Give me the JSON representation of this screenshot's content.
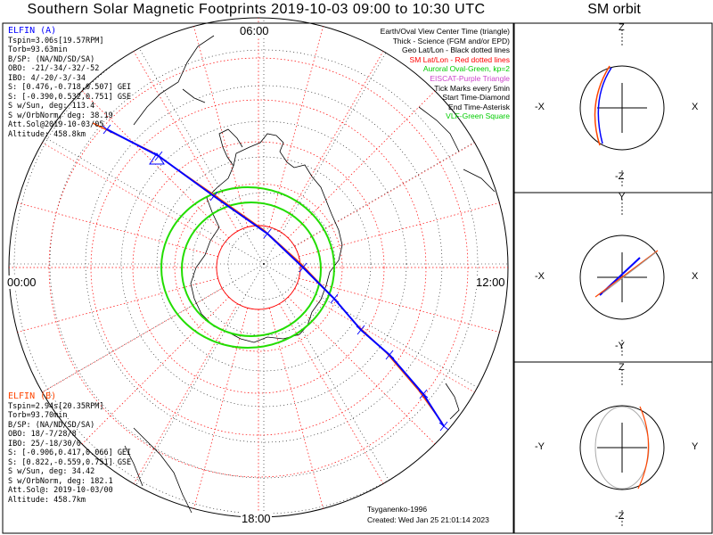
{
  "title": "Southern Solar Magnetic Footprints 2019-10-03 09:00 to 10:30 UTC",
  "orbit_title": "SM orbit",
  "hour_labels": {
    "top": "06:00",
    "left": "00:00",
    "right": "12:00",
    "bottom": "18:00"
  },
  "elfin_a": {
    "name": "ELFIN (A)",
    "color": "#0000ff",
    "lines": [
      "Tspin=3.06s[19.57RPM]",
      "Torb=93.63min",
      "B/SP: (NA/ND/SD/SA)",
      "OBO: -21/-34/-32/-52",
      "IBO: 4/-20/-3/-34",
      "S: [0.476,-0.718,0.507] GEI",
      "S: [-0.390,0.532,0.751] GSE",
      "S w/Sun, deg: 113.4",
      "S w/OrbNorm, deg: 38.19",
      "Att.Sol@2019-10-03/05",
      "Altitude: 458.8km"
    ]
  },
  "elfin_b": {
    "name": "ELFIN (B)",
    "color": "#ff4500",
    "lines": [
      "Tspin=2.94s[20.35RPM]",
      "Torb=93.70min",
      "B/SP: (NA/ND/SD/SA)",
      "OBO: 18/-7/28/8",
      "IBO: 25/-18/30/0",
      "S: [-0.906,0.417,0.066] GEI",
      "S: [0.822,-0.559,0.751] GSE",
      "S w/Sun, deg: 34.42",
      "S w/OrbNorm, deg: 182.1",
      "Att.Sol@: 2019-10-03/00",
      "Altitude: 458.7km"
    ]
  },
  "legend": [
    {
      "text": "Earth/Oval View Center Time (triangle)",
      "color": "#000000"
    },
    {
      "text": "Thick - Science (FGM and/or EPD)",
      "color": "#000000"
    },
    {
      "text": "Geo Lat/Lon - Black dotted lines",
      "color": "#000000"
    },
    {
      "text": "SM Lat/Lon - Red dotted lines",
      "color": "#ff0000"
    },
    {
      "text": "Auroral Oval-Green, kp=2",
      "color": "#00cc00"
    },
    {
      "text": "EISCAT-Purple Triangle",
      "color": "#cc44cc"
    },
    {
      "text": "Tick Marks every 5min",
      "color": "#000000"
    },
    {
      "text": "Start Time-Diamond",
      "color": "#000000"
    },
    {
      "text": "End Time-Asterisk",
      "color": "#000000"
    },
    {
      "text": "VLF-Green Square",
      "color": "#00cc00"
    }
  ],
  "credit": {
    "author": "Tsyganenko-1996",
    "created": "Created: Wed Jan 25 21:01:14 2023"
  },
  "panels": [
    {
      "top": "Z",
      "bottom": "-Z",
      "left": "-X",
      "right": "X"
    },
    {
      "top": "Y",
      "bottom": "-Y",
      "left": "-X",
      "right": "X"
    },
    {
      "top": "Z",
      "bottom": "-Z",
      "left": "-Y",
      "right": "Y"
    }
  ],
  "colors": {
    "elfin_a": "#0000ff",
    "elfin_b": "#ff4500",
    "oval": "#00dd00",
    "sm_grid": "#ff0000",
    "geo_grid": "#000000"
  }
}
